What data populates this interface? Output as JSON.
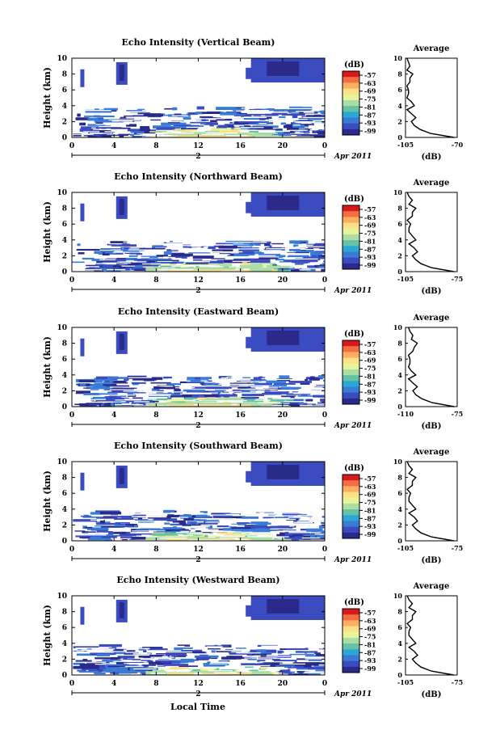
{
  "figure": {
    "xlabel": "Local Time",
    "date_label": "2",
    "month_year": "Apr 2011",
    "ylabel": "Height (km)",
    "colorbar_label": "(dB)",
    "colorbar_ticks": [
      "-57",
      "-63",
      "-69",
      "-75",
      "-81",
      "-87",
      "-93",
      "-99"
    ],
    "colorbar_colors": [
      "#d7191c",
      "#f46d43",
      "#fdae61",
      "#fee08b",
      "#e6f598",
      "#abdda4",
      "#66c2a5",
      "#2ca7d5",
      "#3a7bd5",
      "#3b4cc0",
      "#2a2a8a"
    ],
    "profile_title": "Average",
    "profile_xlabel": "(dB)"
  },
  "chart_data": [
    {
      "type": "heatmap",
      "title": "Echo Intensity (Vertical Beam)",
      "xlabel": "Local Time",
      "ylabel": "Height (km)",
      "xlim": [
        0,
        24
      ],
      "ylim": [
        0,
        10
      ],
      "xticks": [
        "0",
        "4",
        "8",
        "12",
        "16",
        "20",
        "0"
      ],
      "yticks": [
        "0",
        "2",
        "4",
        "6",
        "8",
        "10"
      ],
      "clim": [
        -99,
        -57
      ],
      "profile": {
        "title": "Average",
        "xlabel": "(dB)",
        "xlim": [
          -105,
          -70
        ],
        "xticks": [
          "-105",
          "-70"
        ],
        "heights": [
          0,
          0.5,
          1,
          1.5,
          2,
          2.5,
          3,
          3.5,
          4,
          4.5,
          5,
          5.5,
          6,
          6.5,
          7,
          7.5,
          8,
          8.5,
          9,
          9.5,
          10
        ],
        "values": [
          -72,
          -88,
          -95,
          -99,
          -101,
          -98,
          -101,
          -104,
          -99,
          -101,
          -104,
          -103,
          -103,
          -104,
          -102,
          -102,
          -100,
          -104,
          -102,
          -103,
          -104
        ]
      }
    },
    {
      "type": "heatmap",
      "title": "Echo Intensity (Northward Beam)",
      "xlabel": "Local Time",
      "ylabel": "Height (km)",
      "xlim": [
        0,
        24
      ],
      "ylim": [
        0,
        10
      ],
      "xticks": [
        "0",
        "4",
        "8",
        "12",
        "16",
        "20",
        "0"
      ],
      "yticks": [
        "0",
        "2",
        "4",
        "6",
        "8",
        "10"
      ],
      "clim": [
        -99,
        -57
      ],
      "profile": {
        "title": "Average",
        "xlabel": "(dB)",
        "xlim": [
          -105,
          -75
        ],
        "xticks": [
          "-105",
          "-75"
        ],
        "heights": [
          0,
          0.5,
          1,
          1.5,
          2,
          2.5,
          3,
          3.5,
          4,
          4.5,
          5,
          5.5,
          6,
          6.5,
          7,
          7.5,
          8,
          8.5,
          9,
          9.5,
          10
        ],
        "values": [
          -77,
          -90,
          -96,
          -99,
          -101,
          -98,
          -100,
          -103,
          -99,
          -101,
          -103,
          -103,
          -102,
          -104,
          -101,
          -101,
          -99,
          -103,
          -101,
          -103,
          -104
        ]
      }
    },
    {
      "type": "heatmap",
      "title": "Echo Intensity (Eastward Beam)",
      "xlabel": "Local Time",
      "ylabel": "Height (km)",
      "xlim": [
        0,
        24
      ],
      "ylim": [
        0,
        10
      ],
      "xticks": [
        "0",
        "4",
        "8",
        "12",
        "16",
        "20",
        "0"
      ],
      "yticks": [
        "0",
        "2",
        "4",
        "6",
        "8",
        "10"
      ],
      "clim": [
        -99,
        -57
      ],
      "profile": {
        "title": "Average",
        "xlabel": "(dB)",
        "xlim": [
          -110,
          -75
        ],
        "xticks": [
          "-110",
          "-75"
        ],
        "heights": [
          0,
          0.5,
          1,
          1.5,
          2,
          2.5,
          3,
          3.5,
          4,
          4.5,
          5,
          5.5,
          6,
          6.5,
          7,
          7.5,
          8,
          8.5,
          9,
          9.5,
          10
        ],
        "values": [
          -77,
          -92,
          -99,
          -103,
          -105,
          -102,
          -105,
          -108,
          -103,
          -106,
          -108,
          -107,
          -107,
          -108,
          -105,
          -104,
          -102,
          -106,
          -105,
          -107,
          -108
        ]
      }
    },
    {
      "type": "heatmap",
      "title": "Echo Intensity (Southward Beam)",
      "xlabel": "Local Time",
      "ylabel": "Height (km)",
      "xlim": [
        0,
        24
      ],
      "ylim": [
        0,
        10
      ],
      "xticks": [
        "0",
        "4",
        "8",
        "12",
        "16",
        "20",
        "0"
      ],
      "yticks": [
        "0",
        "2",
        "4",
        "6",
        "8",
        "10"
      ],
      "clim": [
        -99,
        -57
      ],
      "profile": {
        "title": "Average",
        "xlabel": "(dB)",
        "xlim": [
          -105,
          -75
        ],
        "xticks": [
          "-105",
          "-75"
        ],
        "heights": [
          0,
          0.5,
          1,
          1.5,
          2,
          2.5,
          3,
          3.5,
          4,
          4.5,
          5,
          5.5,
          6,
          6.5,
          7,
          7.5,
          8,
          8.5,
          9,
          9.5,
          10
        ],
        "values": [
          -77,
          -90,
          -96,
          -99,
          -101,
          -98,
          -100,
          -103,
          -99,
          -101,
          -103,
          -103,
          -102,
          -104,
          -101,
          -101,
          -99,
          -103,
          -101,
          -103,
          -104
        ]
      }
    },
    {
      "type": "heatmap",
      "title": "Echo Intensity (Westward Beam)",
      "xlabel": "Local Time",
      "ylabel": "Height (km)",
      "xlim": [
        0,
        24
      ],
      "ylim": [
        0,
        10
      ],
      "xticks": [
        "0",
        "4",
        "8",
        "12",
        "16",
        "20",
        "0"
      ],
      "yticks": [
        "0",
        "2",
        "4",
        "6",
        "8",
        "10"
      ],
      "clim": [
        -99,
        -57
      ],
      "profile": {
        "title": "Average",
        "xlabel": "(dB)",
        "xlim": [
          -105,
          -75
        ],
        "xticks": [
          "-105",
          "-75"
        ],
        "heights": [
          0,
          0.5,
          1,
          1.5,
          2,
          2.5,
          3,
          3.5,
          4,
          4.5,
          5,
          5.5,
          6,
          6.5,
          7,
          7.5,
          8,
          8.5,
          9,
          9.5,
          10
        ],
        "values": [
          -77,
          -90,
          -96,
          -99,
          -101,
          -98,
          -100,
          -103,
          -99,
          -101,
          -103,
          -103,
          -102,
          -104,
          -101,
          -101,
          -99,
          -103,
          -101,
          -103,
          -104
        ]
      }
    }
  ]
}
